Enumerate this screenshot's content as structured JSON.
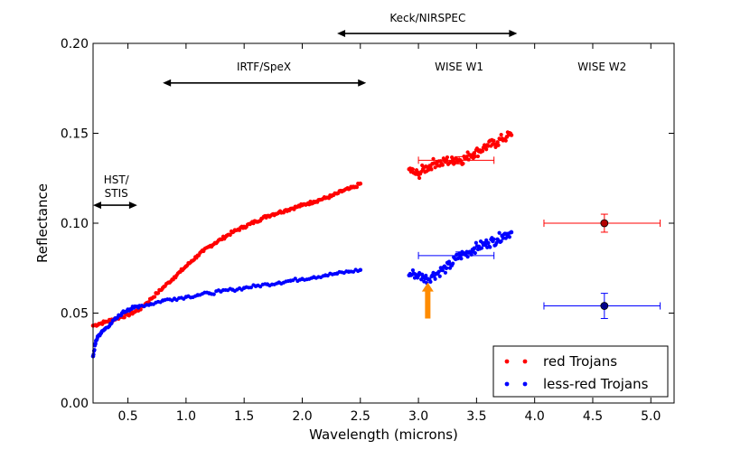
{
  "chart_data": {
    "type": "scatter",
    "title": "",
    "xlabel": "Wavelength (microns)",
    "ylabel": "Reflectance",
    "xlim": [
      0.2,
      5.2
    ],
    "ylim": [
      0.0,
      0.2
    ],
    "grid": false,
    "xticks": [
      {
        "value": 0.5,
        "label": "0.5"
      },
      {
        "value": 1.0,
        "label": "1.0"
      },
      {
        "value": 1.5,
        "label": "1.5"
      },
      {
        "value": 2.0,
        "label": "2.0"
      },
      {
        "value": 2.5,
        "label": "2.5"
      },
      {
        "value": 3.0,
        "label": "3.0"
      },
      {
        "value": 3.5,
        "label": "3.5"
      },
      {
        "value": 4.0,
        "label": "4.0"
      },
      {
        "value": 4.5,
        "label": "4.5"
      },
      {
        "value": 5.0,
        "label": "5.0"
      }
    ],
    "yticks": [
      {
        "value": 0.0,
        "label": "0.00"
      },
      {
        "value": 0.05,
        "label": "0.05"
      },
      {
        "value": 0.1,
        "label": "0.10"
      },
      {
        "value": 0.15,
        "label": "0.15"
      },
      {
        "value": 0.2,
        "label": "0.20"
      }
    ],
    "series": [
      {
        "name": "red Trojans",
        "color": "#ff0000",
        "points": [
          [
            0.2,
            0.043
          ],
          [
            0.25,
            0.044
          ],
          [
            0.3,
            0.045
          ],
          [
            0.35,
            0.046
          ],
          [
            0.4,
            0.047
          ],
          [
            0.45,
            0.048
          ],
          [
            0.5,
            0.049
          ],
          [
            0.55,
            0.0505
          ],
          [
            0.6,
            0.052
          ],
          [
            0.65,
            0.055
          ],
          [
            0.7,
            0.058
          ],
          [
            0.75,
            0.061
          ],
          [
            0.8,
            0.064
          ],
          [
            0.85,
            0.067
          ],
          [
            0.9,
            0.07
          ],
          [
            0.95,
            0.073
          ],
          [
            1.0,
            0.076
          ],
          [
            1.05,
            0.079
          ],
          [
            1.1,
            0.082
          ],
          [
            1.15,
            0.0845
          ],
          [
            1.2,
            0.087
          ],
          [
            1.25,
            0.089
          ],
          [
            1.3,
            0.091
          ],
          [
            1.35,
            0.093
          ],
          [
            1.4,
            0.095
          ],
          [
            1.45,
            0.0965
          ],
          [
            1.5,
            0.098
          ],
          [
            1.55,
            0.0995
          ],
          [
            1.6,
            0.101
          ],
          [
            1.65,
            0.1025
          ],
          [
            1.7,
            0.104
          ],
          [
            1.75,
            0.105
          ],
          [
            1.8,
            0.106
          ],
          [
            1.85,
            0.107
          ],
          [
            1.9,
            0.108
          ],
          [
            1.95,
            0.109
          ],
          [
            2.0,
            0.11
          ],
          [
            2.05,
            0.111
          ],
          [
            2.1,
            0.112
          ],
          [
            2.15,
            0.113
          ],
          [
            2.2,
            0.114
          ],
          [
            2.25,
            0.115
          ],
          [
            2.3,
            0.1165
          ],
          [
            2.35,
            0.118
          ],
          [
            2.4,
            0.119
          ],
          [
            2.45,
            0.12
          ],
          [
            2.5,
            0.122
          ],
          [
            2.92,
            0.13
          ],
          [
            2.96,
            0.128
          ],
          [
            3.0,
            0.127
          ],
          [
            3.04,
            0.13
          ],
          [
            3.08,
            0.131
          ],
          [
            3.12,
            0.133
          ],
          [
            3.16,
            0.134
          ],
          [
            3.2,
            0.133
          ],
          [
            3.24,
            0.135
          ],
          [
            3.28,
            0.134
          ],
          [
            3.32,
            0.136
          ],
          [
            3.36,
            0.135
          ],
          [
            3.4,
            0.136
          ],
          [
            3.44,
            0.138
          ],
          [
            3.48,
            0.139
          ],
          [
            3.52,
            0.14
          ],
          [
            3.56,
            0.142
          ],
          [
            3.6,
            0.143
          ],
          [
            3.64,
            0.144
          ],
          [
            3.68,
            0.145
          ],
          [
            3.72,
            0.147
          ],
          [
            3.76,
            0.148
          ],
          [
            3.8,
            0.149
          ]
        ]
      },
      {
        "name": "less-red Trojans",
        "color": "#0000ff",
        "points": [
          [
            0.2,
            0.026
          ],
          [
            0.22,
            0.033
          ],
          [
            0.24,
            0.037
          ],
          [
            0.27,
            0.039
          ],
          [
            0.3,
            0.041
          ],
          [
            0.35,
            0.044
          ],
          [
            0.4,
            0.047
          ],
          [
            0.45,
            0.05
          ],
          [
            0.5,
            0.052
          ],
          [
            0.55,
            0.053
          ],
          [
            0.6,
            0.054
          ],
          [
            0.7,
            0.055
          ],
          [
            0.8,
            0.057
          ],
          [
            0.9,
            0.058
          ],
          [
            1.0,
            0.059
          ],
          [
            1.1,
            0.06
          ],
          [
            1.2,
            0.061
          ],
          [
            1.3,
            0.062
          ],
          [
            1.4,
            0.063
          ],
          [
            1.5,
            0.064
          ],
          [
            1.6,
            0.065
          ],
          [
            1.7,
            0.066
          ],
          [
            1.8,
            0.067
          ],
          [
            1.9,
            0.068
          ],
          [
            2.0,
            0.069
          ],
          [
            2.1,
            0.07
          ],
          [
            2.2,
            0.071
          ],
          [
            2.3,
            0.072
          ],
          [
            2.4,
            0.073
          ],
          [
            2.5,
            0.074
          ],
          [
            2.92,
            0.071
          ],
          [
            2.96,
            0.072
          ],
          [
            3.0,
            0.071
          ],
          [
            3.04,
            0.07
          ],
          [
            3.08,
            0.069
          ],
          [
            3.12,
            0.071
          ],
          [
            3.16,
            0.072
          ],
          [
            3.2,
            0.074
          ],
          [
            3.24,
            0.075
          ],
          [
            3.28,
            0.077
          ],
          [
            3.32,
            0.08
          ],
          [
            3.36,
            0.082
          ],
          [
            3.4,
            0.083
          ],
          [
            3.44,
            0.084
          ],
          [
            3.48,
            0.086
          ],
          [
            3.52,
            0.087
          ],
          [
            3.56,
            0.088
          ],
          [
            3.6,
            0.089
          ],
          [
            3.64,
            0.09
          ],
          [
            3.68,
            0.091
          ],
          [
            3.72,
            0.093
          ],
          [
            3.76,
            0.094
          ],
          [
            3.8,
            0.095
          ]
        ]
      }
    ],
    "error_bars": [
      {
        "name": "red-w1",
        "x": 3.35,
        "y": 0.135,
        "xerr": [
          3.0,
          3.65
        ],
        "yerr": [
          0.133,
          0.137
        ],
        "color": "#ff0000",
        "marker": false
      },
      {
        "name": "blue-w1",
        "x": 3.35,
        "y": 0.082,
        "xerr": [
          3.0,
          3.65
        ],
        "yerr": [
          0.08,
          0.084
        ],
        "color": "#0000ff",
        "marker": false
      },
      {
        "name": "red-w2",
        "x": 4.6,
        "y": 0.1,
        "xerr": [
          4.08,
          5.08
        ],
        "yerr": [
          0.095,
          0.105
        ],
        "color": "#ff0000",
        "marker": true,
        "marker_fill": "#b30000"
      },
      {
        "name": "blue-w2",
        "x": 4.6,
        "y": 0.054,
        "xerr": [
          4.08,
          5.08
        ],
        "yerr": [
          0.047,
          0.061
        ],
        "color": "#0000ff",
        "marker": true,
        "marker_fill": "#00008b"
      }
    ],
    "annotations": [
      {
        "name": "hst-stis",
        "label_lines": [
          "HST/",
          "STIS"
        ],
        "x_range": [
          0.2,
          0.58
        ],
        "y": 0.11,
        "label_x": 0.4,
        "label_y": 0.122
      },
      {
        "name": "irtf-spex",
        "label_lines": [
          "IRTF/SpeX"
        ],
        "x_range": [
          0.8,
          2.55
        ],
        "y": 0.178,
        "label_x": 1.67,
        "label_y": 0.185
      },
      {
        "name": "keck-nirspec",
        "label_lines": [
          "Keck/NIRSPEC"
        ],
        "x_range": [
          2.3,
          3.85
        ],
        "y": 0.2055,
        "label_x": 3.08,
        "label_y": 0.212
      },
      {
        "name": "wise-w1",
        "label_lines": [
          "WISE W1"
        ],
        "x_range": null,
        "y": null,
        "label_x": 3.35,
        "label_y": 0.185
      },
      {
        "name": "wise-w2",
        "label_lines": [
          "WISE W2"
        ],
        "x_range": null,
        "y": null,
        "label_x": 4.58,
        "label_y": 0.185
      }
    ],
    "arrow_marker": {
      "x": 3.08,
      "y_from": 0.047,
      "y_to": 0.067,
      "color": "#ff8c00"
    },
    "legend": {
      "position": "bottom-right",
      "entries": [
        {
          "label": "red Trojans",
          "color": "#ff0000"
        },
        {
          "label": "less-red Trojans",
          "color": "#0000ff"
        }
      ]
    }
  }
}
